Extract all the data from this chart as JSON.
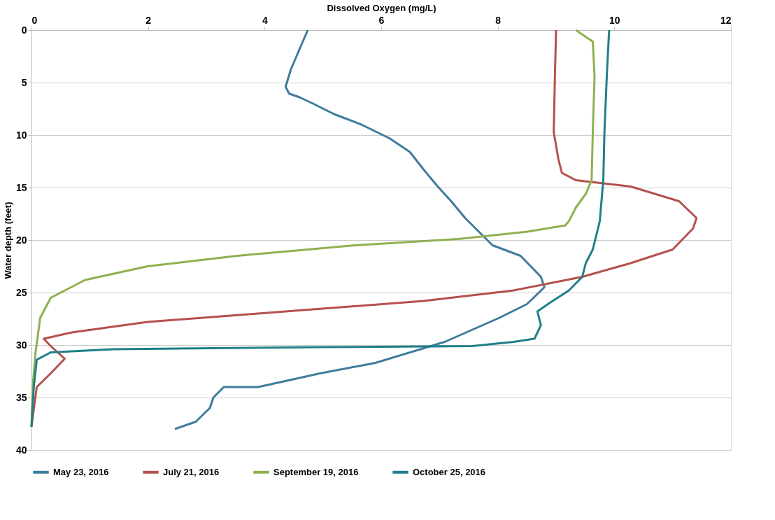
{
  "chart_data": {
    "type": "line",
    "xlabel": "Dissolved Oxygen (mg/L)",
    "ylabel": "Water depth (feet)",
    "xlim": [
      0,
      12
    ],
    "xticks": [
      0,
      2,
      4,
      6,
      8,
      10,
      12
    ],
    "ylim": [
      40,
      0
    ],
    "yticks": [
      0,
      5,
      10,
      15,
      20,
      25,
      30,
      35,
      40
    ],
    "grid": "y",
    "legend": "bottom",
    "marker": "none",
    "line_style": "solid",
    "series": [
      {
        "name": "May 23, 2016",
        "color": "#3f7c9c",
        "x": [
          4.74,
          4.6,
          4.45,
          4.36,
          4.42,
          4.6,
          4.83,
          5.19,
          5.66,
          6.14,
          6.49,
          6.73,
          6.97,
          7.2,
          7.44,
          7.91,
          8.39,
          8.74,
          8.8,
          8.5,
          8.03,
          7.09,
          5.9,
          4.95,
          3.89,
          3.3,
          3.12,
          3.06,
          2.82,
          2.46
        ],
        "values": [
          0,
          1.8,
          3.75,
          5.4,
          6.05,
          6.4,
          7.0,
          8.0,
          9.0,
          10.3,
          11.6,
          13.3,
          14.9,
          16.3,
          17.9,
          20.5,
          21.5,
          23.5,
          24.5,
          26.1,
          27.4,
          29.7,
          31.7,
          32.7,
          34.0,
          34.0,
          35.0,
          36.0,
          37.3,
          38.0
        ]
      },
      {
        "name": "July 21, 2016",
        "color": "#b5514c",
        "x": [
          9.0,
          8.98,
          8.96,
          9.04,
          9.1,
          9.34,
          10.28,
          11.11,
          11.41,
          11.35,
          11.0,
          10.28,
          9.45,
          8.27,
          6.73,
          4.36,
          1.99,
          0.69,
          0.21,
          0.33,
          0.57,
          0.33,
          0.09,
          0
        ],
        "values": [
          0,
          4.4,
          9.7,
          12.3,
          13.6,
          14.3,
          14.9,
          16.3,
          17.9,
          18.9,
          20.9,
          22.2,
          23.5,
          24.8,
          25.8,
          26.8,
          27.8,
          28.8,
          29.4,
          30.1,
          31.3,
          32.7,
          34.0,
          37.8
        ]
      },
      {
        "name": "September 19, 2016",
        "color": "#8fb050",
        "x": [
          9.34,
          9.63,
          9.66,
          9.63,
          9.61,
          9.51,
          9.34,
          9.22,
          9.16,
          8.51,
          7.32,
          5.55,
          3.53,
          1.99,
          0.92,
          0.33,
          0.15,
          0.07,
          0.02,
          0
        ],
        "values": [
          0,
          1.1,
          4.4,
          9.7,
          14.3,
          15.6,
          16.9,
          18.2,
          18.6,
          19.2,
          19.9,
          20.5,
          21.5,
          22.5,
          23.8,
          25.5,
          27.4,
          30.7,
          34.0,
          37.8
        ]
      },
      {
        "name": "October 25, 2016",
        "color": "#1f7f8a",
        "x": [
          9.91,
          9.87,
          9.83,
          9.81,
          9.75,
          9.63,
          9.51,
          9.45,
          9.22,
          8.86,
          8.68,
          8.74,
          8.63,
          8.27,
          7.56,
          4.95,
          1.4,
          0.33,
          0.09,
          0.04,
          0
        ],
        "values": [
          0,
          4.4,
          9.7,
          14.3,
          18.2,
          20.9,
          22.2,
          23.5,
          24.8,
          26.1,
          26.8,
          28.1,
          29.4,
          29.7,
          30.1,
          30.2,
          30.4,
          30.7,
          31.4,
          34.0,
          37.8
        ]
      }
    ]
  }
}
